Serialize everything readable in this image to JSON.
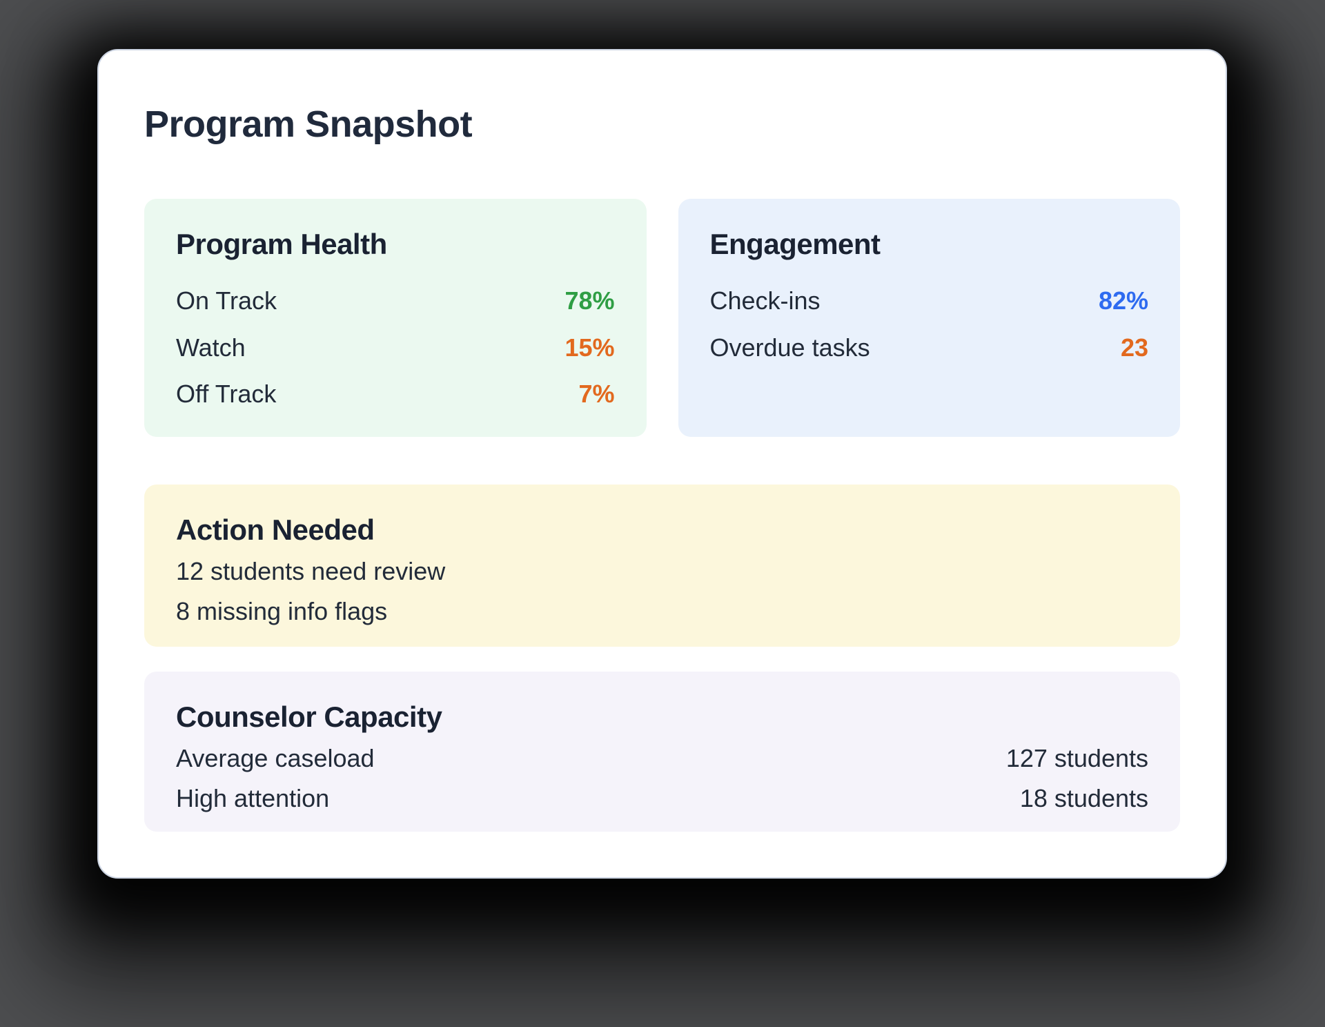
{
  "page": {
    "title": "Program Snapshot"
  },
  "colors": {
    "page_background": "#4d4e50",
    "card_background": "#ffffff",
    "title_text": "#202a3c",
    "body_text": "#222b39",
    "green_value": "#2f9e44",
    "orange_value": "#e2691e",
    "blue_value": "#2e6bf0",
    "mint_panel": "#ebf9f0",
    "blue_panel": "#e9f1fc",
    "yellow_panel": "#fcf7dc",
    "lavender_panel": "#f5f3fa"
  },
  "program_health": {
    "title": "Program Health",
    "rows": [
      {
        "label": "On Track",
        "value": "78%",
        "value_color": "#2f9e44"
      },
      {
        "label": "Watch",
        "value": "15%",
        "value_color": "#e2691e"
      },
      {
        "label": "Off Track",
        "value": "7%",
        "value_color": "#e2691e"
      }
    ]
  },
  "engagement": {
    "title": "Engagement",
    "rows": [
      {
        "label": "Check-ins",
        "value": "82%",
        "value_color": "#2e6bf0"
      },
      {
        "label": "Overdue tasks",
        "value": "23",
        "value_color": "#e2691e"
      }
    ]
  },
  "action_needed": {
    "title": "Action Needed",
    "lines": [
      "12 students need review",
      "8 missing info flags"
    ]
  },
  "counselor_capacity": {
    "title": "Counselor Capacity",
    "rows": [
      {
        "label": "Average caseload",
        "value": "127 students"
      },
      {
        "label": "High attention",
        "value": "18 students"
      }
    ]
  }
}
